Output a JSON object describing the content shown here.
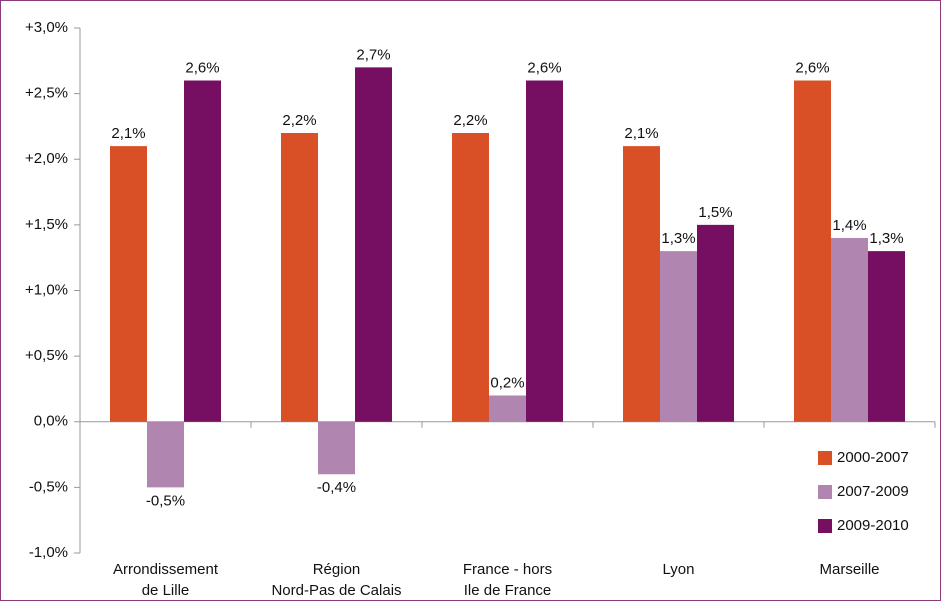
{
  "chart_data": {
    "type": "bar",
    "categories": [
      [
        "Arrondissement",
        "de Lille"
      ],
      [
        "Région",
        "Nord-Pas de Calais"
      ],
      [
        "France - hors",
        "Ile de France"
      ],
      [
        "Lyon"
      ],
      [
        "Marseille"
      ]
    ],
    "series": [
      {
        "name": "2000-2007",
        "color": "#d94f26",
        "values": [
          2.1,
          2.2,
          2.2,
          2.1,
          2.6
        ],
        "value_labels": [
          "2,1%",
          "2,2%",
          "2,2%",
          "2,1%",
          "2,6%"
        ]
      },
      {
        "name": "2007-2009",
        "color": "#b085b0",
        "values": [
          -0.5,
          -0.4,
          0.2,
          1.3,
          1.4
        ],
        "value_labels": [
          "-0,5%",
          "-0,4%",
          "0,2%",
          "1,3%",
          "1,4%"
        ]
      },
      {
        "name": "2009-2010",
        "color": "#760f61",
        "values": [
          2.6,
          2.7,
          2.6,
          1.5,
          1.3
        ],
        "value_labels": [
          "2,6%",
          "2,7%",
          "2,6%",
          "1,5%",
          "1,3%"
        ]
      }
    ],
    "ylim": [
      -1,
      3
    ],
    "yticks": [
      {
        "value": -1,
        "label": "-1,0%"
      },
      {
        "value": -0.5,
        "label": "-0,5%"
      },
      {
        "value": 0,
        "label": "0,0%"
      },
      {
        "value": 0.5,
        "label": "+0,5%"
      },
      {
        "value": 1,
        "label": "+1,0%"
      },
      {
        "value": 1.5,
        "label": "+1,5%"
      },
      {
        "value": 2,
        "label": "+2,0%"
      },
      {
        "value": 2.5,
        "label": "+2,5%"
      },
      {
        "value": 3,
        "label": "+3,0%"
      }
    ],
    "legend": "lower right",
    "grid": false
  }
}
